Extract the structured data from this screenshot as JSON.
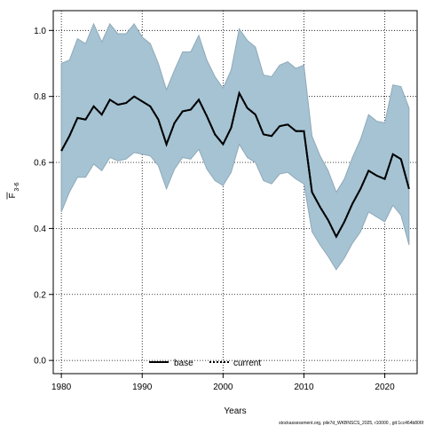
{
  "chart_data": {
    "type": "area",
    "xlabel": "Years",
    "ylabel_main": "F",
    "ylabel_sub": "3-6",
    "xlim": [
      1979,
      2024
    ],
    "ylim": [
      -0.04,
      1.06
    ],
    "xticks": [
      1980,
      1990,
      2000,
      2010,
      2020
    ],
    "yticks": [
      0.0,
      0.2,
      0.4,
      0.6,
      0.8,
      1.0
    ],
    "grid": true,
    "legend_position": "bottom-center",
    "band_color": "#a5c3d3",
    "band_edge_color": "#8fa9b8",
    "footer": "stockassessment.org, pile7d_WKBNSCS_2025, r10000 , git:1cc464b806f",
    "series": [
      {
        "name": "base",
        "style": "solid",
        "x": [
          1980,
          1981,
          1982,
          1983,
          1984,
          1985,
          1986,
          1987,
          1988,
          1989,
          1990,
          1991,
          1992,
          1993,
          1994,
          1995,
          1996,
          1997,
          1998,
          1999,
          2000,
          2001,
          2002,
          2003,
          2004,
          2005,
          2006,
          2007,
          2008,
          2009,
          2010,
          2011,
          2012,
          2013,
          2014,
          2015,
          2016,
          2017,
          2018,
          2019,
          2020,
          2021,
          2022,
          2023
        ],
        "values": [
          0.635,
          0.68,
          0.735,
          0.73,
          0.77,
          0.745,
          0.79,
          0.775,
          0.78,
          0.8,
          0.785,
          0.77,
          0.73,
          0.655,
          0.72,
          0.755,
          0.76,
          0.79,
          0.74,
          0.685,
          0.655,
          0.705,
          0.81,
          0.765,
          0.745,
          0.685,
          0.68,
          0.71,
          0.715,
          0.695,
          0.695,
          0.51,
          0.465,
          0.425,
          0.375,
          0.42,
          0.475,
          0.52,
          0.575,
          0.56,
          0.55,
          0.625,
          0.61,
          0.52
        ]
      },
      {
        "name": "current",
        "style": "dotted",
        "x": [
          1980,
          1981,
          1982,
          1983,
          1984,
          1985,
          1986,
          1987,
          1988,
          1989,
          1990,
          1991,
          1992,
          1993,
          1994,
          1995,
          1996,
          1997,
          1998,
          1999,
          2000,
          2001,
          2002,
          2003,
          2004,
          2005,
          2006,
          2007,
          2008,
          2009,
          2010,
          2011,
          2012,
          2013,
          2014,
          2015,
          2016,
          2017,
          2018,
          2019,
          2020,
          2021,
          2022,
          2023
        ],
        "values": [
          0.635,
          0.68,
          0.735,
          0.73,
          0.77,
          0.745,
          0.79,
          0.775,
          0.78,
          0.8,
          0.785,
          0.77,
          0.73,
          0.655,
          0.72,
          0.755,
          0.76,
          0.79,
          0.74,
          0.685,
          0.655,
          0.705,
          0.81,
          0.765,
          0.745,
          0.685,
          0.68,
          0.71,
          0.715,
          0.695,
          0.695,
          0.51,
          0.465,
          0.425,
          0.375,
          0.42,
          0.475,
          0.52,
          0.575,
          0.56,
          0.55,
          0.625,
          0.61,
          0.52
        ]
      }
    ],
    "band": {
      "x": [
        1980,
        1981,
        1982,
        1983,
        1984,
        1985,
        1986,
        1987,
        1988,
        1989,
        1990,
        1991,
        1992,
        1993,
        1994,
        1995,
        1996,
        1997,
        1998,
        1999,
        2000,
        2001,
        2002,
        2003,
        2004,
        2005,
        2006,
        2007,
        2008,
        2009,
        2010,
        2011,
        2012,
        2013,
        2014,
        2015,
        2016,
        2017,
        2018,
        2019,
        2020,
        2021,
        2022,
        2023
      ],
      "upper": [
        0.9,
        0.91,
        0.975,
        0.96,
        1.02,
        0.965,
        1.02,
        0.99,
        0.99,
        1.02,
        0.98,
        0.96,
        0.9,
        0.82,
        0.88,
        0.935,
        0.935,
        0.985,
        0.91,
        0.86,
        0.825,
        0.88,
        1.005,
        0.97,
        0.95,
        0.865,
        0.86,
        0.895,
        0.905,
        0.885,
        0.895,
        0.68,
        0.62,
        0.575,
        0.51,
        0.55,
        0.615,
        0.67,
        0.745,
        0.725,
        0.72,
        0.835,
        0.83,
        0.765
      ],
      "lower": [
        0.45,
        0.51,
        0.555,
        0.555,
        0.595,
        0.575,
        0.615,
        0.605,
        0.61,
        0.63,
        0.625,
        0.62,
        0.59,
        0.52,
        0.58,
        0.615,
        0.61,
        0.64,
        0.58,
        0.545,
        0.53,
        0.57,
        0.655,
        0.615,
        0.6,
        0.545,
        0.535,
        0.565,
        0.57,
        0.55,
        0.535,
        0.39,
        0.35,
        0.315,
        0.275,
        0.31,
        0.355,
        0.39,
        0.45,
        0.435,
        0.42,
        0.47,
        0.44,
        0.35
      ]
    }
  }
}
